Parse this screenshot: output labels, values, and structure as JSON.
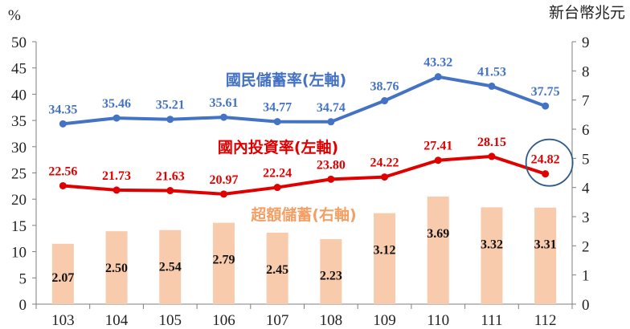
{
  "chart_data": {
    "type": "bar+line",
    "categories": [
      "103",
      "104",
      "105",
      "106",
      "107",
      "108",
      "109",
      "110",
      "111",
      "112"
    ],
    "left_axis": {
      "unit": "%",
      "ylim": [
        0,
        50
      ],
      "ticks": [
        "0",
        "5",
        "10",
        "15",
        "20",
        "25",
        "30",
        "35",
        "40",
        "45",
        "50"
      ]
    },
    "right_axis": {
      "unit": "新台幣兆元",
      "ylim": [
        0,
        9
      ],
      "ticks": [
        "0",
        "1",
        "2",
        "3",
        "4",
        "5",
        "6",
        "7",
        "8",
        "9"
      ]
    },
    "series": [
      {
        "name": "國民儲蓄率(左軸)",
        "type": "line",
        "axis": "left",
        "color": "#4472c4",
        "values": [
          34.35,
          35.46,
          35.21,
          35.61,
          34.77,
          34.74,
          38.76,
          43.32,
          41.53,
          37.75
        ],
        "labels": [
          "34.35",
          "35.46",
          "35.21",
          "35.61",
          "34.77",
          "34.74",
          "38.76",
          "43.32",
          "41.53",
          "37.75"
        ]
      },
      {
        "name": "國內投資率(左軸)",
        "type": "line",
        "axis": "left",
        "color": "#e00000",
        "values": [
          22.56,
          21.73,
          21.63,
          20.97,
          22.24,
          23.8,
          24.22,
          27.41,
          28.15,
          24.82
        ],
        "labels": [
          "22.56",
          "21.73",
          "21.63",
          "20.97",
          "22.24",
          "23.80",
          "24.22",
          "27.41",
          "28.15",
          "24.82"
        ]
      },
      {
        "name": "超額儲蓄(右軸)",
        "type": "bar",
        "axis": "right",
        "color": "#f8cbad",
        "values": [
          2.07,
          2.5,
          2.54,
          2.79,
          2.45,
          2.23,
          3.12,
          3.69,
          3.32,
          3.31
        ],
        "labels": [
          "2.07",
          "2.50",
          "2.54",
          "2.79",
          "2.45",
          "2.23",
          "3.12",
          "3.69",
          "3.32",
          "3.31"
        ]
      }
    ],
    "highlight": {
      "series_index": 1,
      "point_index": 9,
      "color": "#2e5a8a"
    },
    "grid": false,
    "legend": "inline"
  }
}
